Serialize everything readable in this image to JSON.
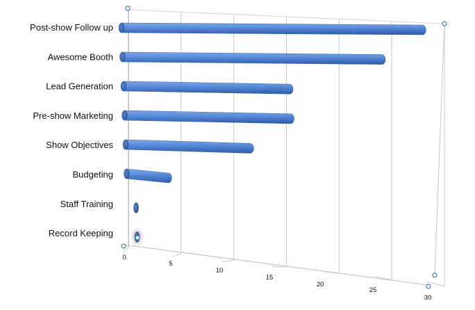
{
  "chart_data": {
    "type": "bar",
    "orientation": "horizontal",
    "style": "3d-cylinder",
    "categories": [
      "Post-show Follow up",
      "Awesome Booth",
      "Lead Generation",
      "Pre-show Marketing",
      "Show Objectives",
      "Budgeting",
      "Staff Training",
      "Record Keeping"
    ],
    "values": [
      29,
      25,
      16,
      16,
      12,
      4,
      0,
      0
    ],
    "x_ticks": [
      "0",
      "5",
      "10",
      "15",
      "20",
      "25",
      "30"
    ],
    "xlim": [
      0,
      30
    ],
    "grid": true,
    "bar_color": "#5b8ed6",
    "title": "",
    "xlabel": "",
    "ylabel": ""
  }
}
